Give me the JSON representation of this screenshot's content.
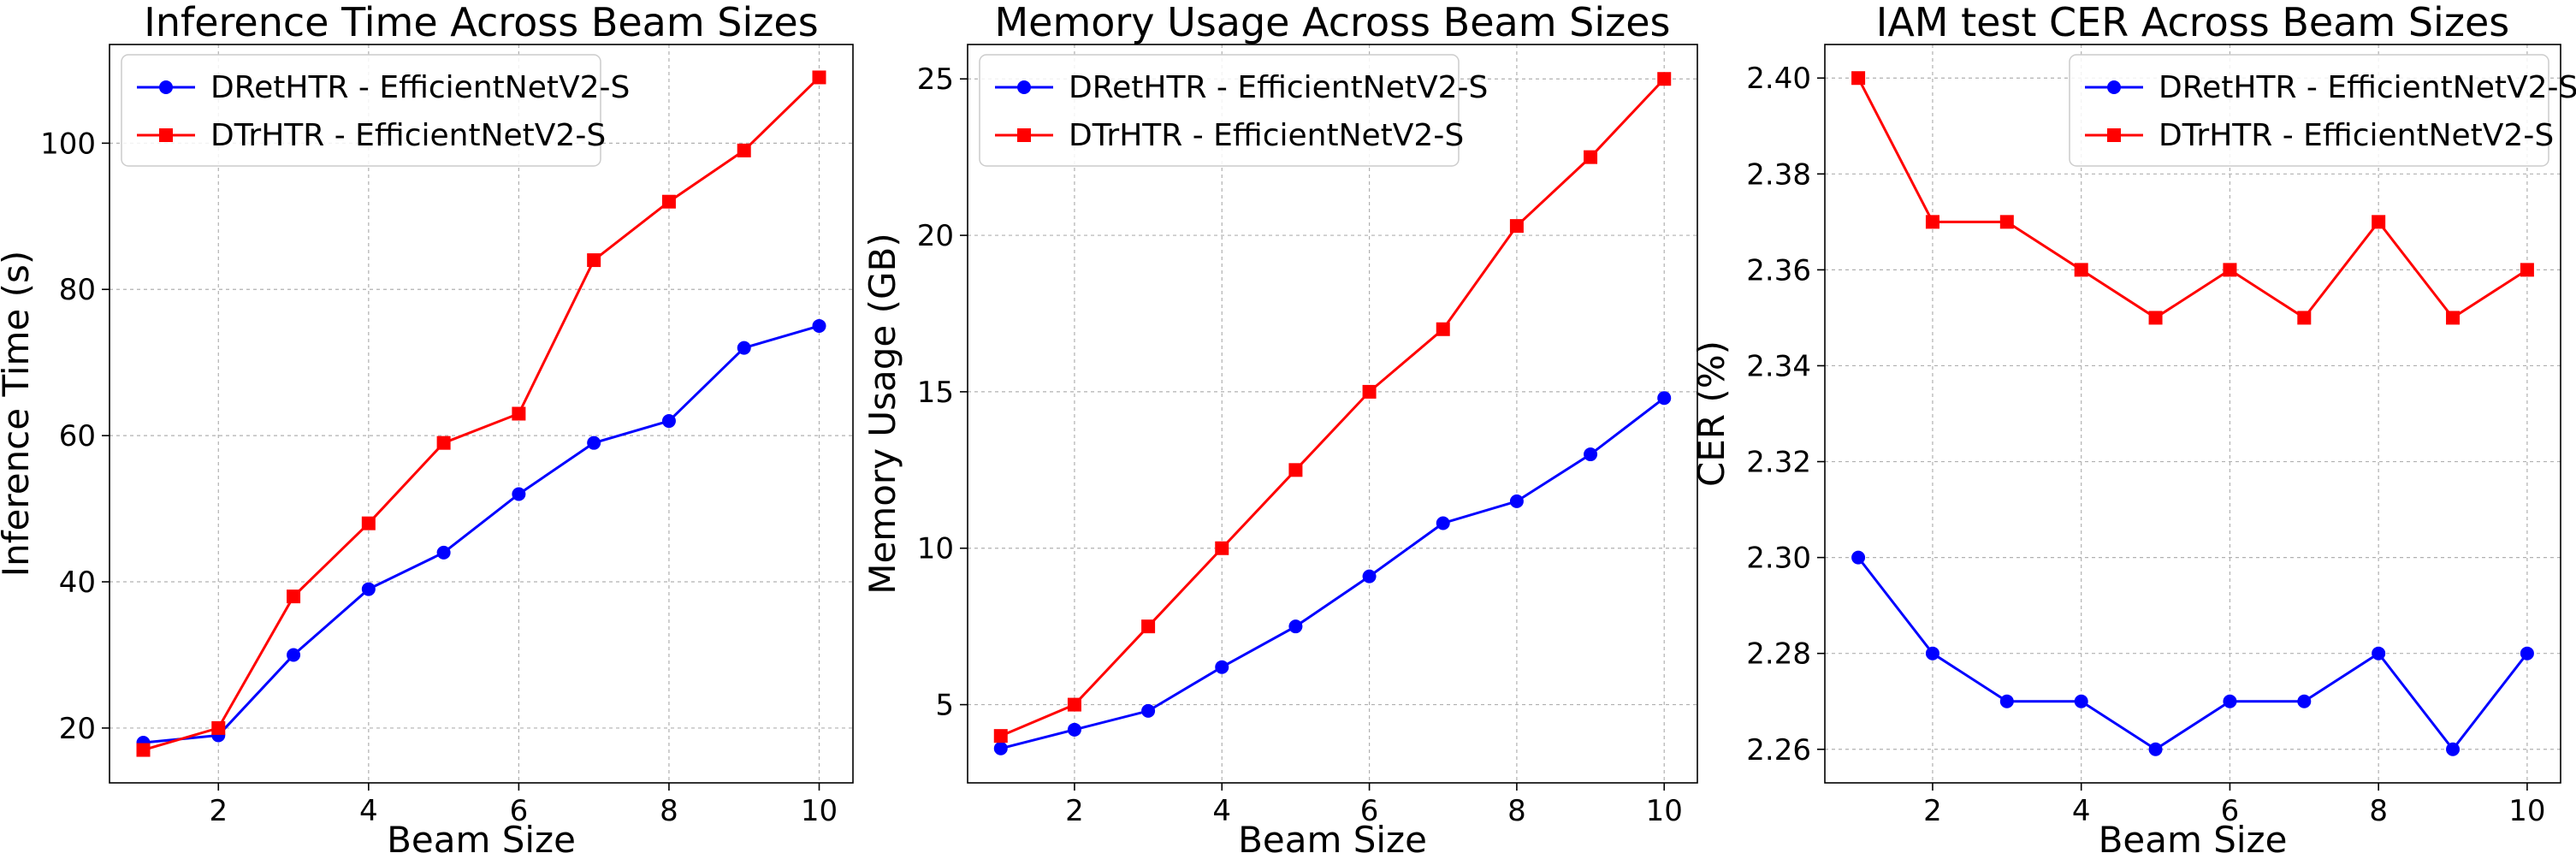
{
  "chart_data": [
    {
      "type": "line",
      "title": "Inference Time Across Beam Sizes",
      "xlabel": "Beam Size",
      "ylabel": "Inference Time (s)",
      "xlim": [
        0.55,
        10.45
      ],
      "ylim": [
        12.5,
        113.5
      ],
      "xticks": [
        2,
        4,
        6,
        8,
        10
      ],
      "yticks": [
        20,
        40,
        60,
        80,
        100
      ],
      "ytick_labels": [
        "20",
        "40",
        "60",
        "80",
        "100"
      ],
      "grid": true,
      "legend_position": "top-left",
      "x": [
        1,
        2,
        3,
        4,
        5,
        6,
        7,
        8,
        9,
        10
      ],
      "series": [
        {
          "name": "DRetHTR - EfficientNetV2-S",
          "color": "#0000ff",
          "marker": "circle",
          "values": [
            18,
            19,
            30,
            39,
            44,
            52,
            59,
            62,
            72,
            75
          ]
        },
        {
          "name": "DTrHTR - EfficientNetV2-S",
          "color": "#ff0000",
          "marker": "square",
          "values": [
            17,
            20,
            38,
            48,
            59,
            63,
            84,
            92,
            99,
            109
          ]
        }
      ]
    },
    {
      "type": "line",
      "title": "Memory Usage Across Beam Sizes",
      "xlabel": "Beam Size",
      "ylabel": "Memory Usage (GB)",
      "xlim": [
        0.55,
        10.45
      ],
      "ylim": [
        2.5,
        26.1
      ],
      "xticks": [
        2,
        4,
        6,
        8,
        10
      ],
      "yticks": [
        5,
        10,
        15,
        20,
        25
      ],
      "ytick_labels": [
        "5",
        "10",
        "15",
        "20",
        "25"
      ],
      "grid": true,
      "legend_position": "top-left",
      "x": [
        1,
        2,
        3,
        4,
        5,
        6,
        7,
        8,
        9,
        10
      ],
      "series": [
        {
          "name": "DRetHTR - EfficientNetV2-S",
          "color": "#0000ff",
          "marker": "circle",
          "values": [
            3.6,
            4.2,
            4.8,
            6.2,
            7.5,
            9.1,
            10.8,
            11.5,
            13.0,
            14.8
          ]
        },
        {
          "name": "DTrHTR - EfficientNetV2-S",
          "color": "#ff0000",
          "marker": "square",
          "values": [
            4.0,
            5.0,
            7.5,
            10.0,
            12.5,
            15.0,
            17.0,
            20.3,
            22.5,
            25.0
          ]
        }
      ]
    },
    {
      "type": "line",
      "title": "IAM test CER Across Beam Sizes",
      "xlabel": "Beam Size",
      "ylabel": "CER (%)",
      "xlim": [
        0.55,
        10.45
      ],
      "ylim": [
        2.253,
        2.407
      ],
      "xticks": [
        2,
        4,
        6,
        8,
        10
      ],
      "yticks": [
        2.26,
        2.28,
        2.3,
        2.32,
        2.34,
        2.36,
        2.38,
        2.4
      ],
      "ytick_labels": [
        "2.26",
        "2.28",
        "2.30",
        "2.32",
        "2.34",
        "2.36",
        "2.38",
        "2.40"
      ],
      "grid": true,
      "legend_position": "top-right",
      "x": [
        1,
        2,
        3,
        4,
        5,
        6,
        7,
        8,
        9,
        10
      ],
      "series": [
        {
          "name": "DRetHTR - EfficientNetV2-S",
          "color": "#0000ff",
          "marker": "circle",
          "values": [
            2.3,
            2.28,
            2.27,
            2.27,
            2.26,
            2.27,
            2.27,
            2.28,
            2.26,
            2.28
          ]
        },
        {
          "name": "DTrHTR - EfficientNetV2-S",
          "color": "#ff0000",
          "marker": "square",
          "values": [
            2.4,
            2.37,
            2.37,
            2.36,
            2.35,
            2.36,
            2.35,
            2.37,
            2.35,
            2.36
          ]
        }
      ]
    }
  ]
}
